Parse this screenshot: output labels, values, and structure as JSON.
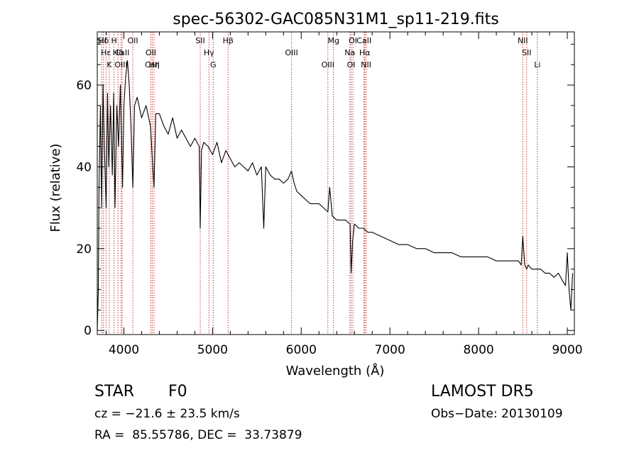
{
  "chart_data": {
    "type": "line",
    "title": "spec-56302-GAC085N31M1_sp11-219.fits",
    "xlabel": "Wavelength (Å)",
    "ylabel": "Flux (relative)",
    "xlim": [
      3700,
      9080
    ],
    "ylim": [
      -1,
      73
    ],
    "xticks": [
      4000,
      5000,
      6000,
      7000,
      8000,
      9000
    ],
    "xtick_labels": [
      "4000",
      "5000",
      "6000",
      "7000",
      "8000",
      "9000"
    ],
    "yticks": [
      0,
      20,
      40,
      60
    ],
    "ytick_labels": [
      "0",
      "20",
      "40",
      "60"
    ],
    "grid": false,
    "line_color": "#000000",
    "marker_color": "#cc3333",
    "series": [
      {
        "x": [
          3700,
          3712,
          3720,
          3735,
          3750,
          3765,
          3780,
          3800,
          3815,
          3830,
          3850,
          3870,
          3885,
          3900,
          3920,
          3940,
          3960,
          3970,
          3985,
          4000,
          4020,
          4040,
          4060,
          4080,
          4101,
          4120,
          4150,
          4200,
          4250,
          4300,
          4340,
          4360,
          4400,
          4450,
          4500,
          4550,
          4600,
          4650,
          4700,
          4750,
          4800,
          4850,
          4861,
          4875,
          4900,
          4950,
          5000,
          5050,
          5100,
          5150,
          5200,
          5250,
          5300,
          5350,
          5400,
          5450,
          5500,
          5550,
          5577,
          5600,
          5650,
          5700,
          5750,
          5800,
          5850,
          5890,
          5920,
          5950,
          6000,
          6050,
          6100,
          6150,
          6200,
          6250,
          6300,
          6320,
          6350,
          6400,
          6450,
          6500,
          6550,
          6563,
          6580,
          6600,
          6650,
          6700,
          6750,
          6800,
          6900,
          7000,
          7100,
          7200,
          7300,
          7400,
          7500,
          7600,
          7700,
          7800,
          7900,
          8000,
          8100,
          8200,
          8300,
          8400,
          8450,
          8480,
          8498,
          8520,
          8542,
          8560,
          8600,
          8662,
          8700,
          8750,
          8800,
          8850,
          8900,
          8950,
          8980,
          9000,
          9020,
          9040,
          9060
        ],
        "y": [
          0,
          10,
          35,
          55,
          30,
          60,
          45,
          30,
          58,
          40,
          55,
          38,
          58,
          30,
          55,
          45,
          60,
          50,
          35,
          55,
          62,
          66,
          60,
          50,
          35,
          55,
          57,
          52,
          55,
          50,
          35,
          53,
          53,
          50,
          48,
          52,
          47,
          49,
          47,
          45,
          47,
          45,
          25,
          44,
          46,
          45,
          43,
          46,
          41,
          44,
          42,
          40,
          41,
          40,
          39,
          41,
          38,
          40,
          25,
          40,
          38,
          37,
          37,
          36,
          37,
          39,
          36,
          34,
          33,
          32,
          31,
          31,
          31,
          30,
          29,
          35,
          28,
          27,
          27,
          27,
          26,
          14,
          22,
          26,
          25,
          25,
          24,
          24,
          23,
          22,
          21,
          21,
          20,
          20,
          19,
          19,
          19,
          18,
          18,
          18,
          18,
          17,
          17,
          17,
          17,
          16,
          23,
          16,
          15,
          16,
          15,
          15,
          15,
          14,
          14,
          13,
          14,
          12,
          11,
          19,
          10,
          5,
          14
        ]
      }
    ],
    "lines": [
      {
        "label": "Hδ",
        "wavelength": 3770
      },
      {
        "label": "Hε",
        "wavelength": 3798
      },
      {
        "label": "K",
        "wavelength": 3835
      },
      {
        "label": "H",
        "wavelength": 3889
      },
      {
        "label": "Hδ",
        "wavelength": 3934
      },
      {
        "label": "OIII",
        "wavelength": 3969
      },
      {
        "label": "OII",
        "wavelength": 4101
      },
      {
        "label": "OII",
        "wavelength": 4304
      },
      {
        "label": "Hη",
        "wavelength": 4340
      },
      {
        "label": "SII",
        "wavelength": 4861
      },
      {
        "label": "Hγ",
        "wavelength": 4959
      },
      {
        "label": "G",
        "wavelength": 5007
      },
      {
        "label": "Hβ",
        "wavelength": 5175
      },
      {
        "label": "OIII",
        "wavelength": 5890
      },
      {
        "label": "OIII",
        "wavelength": 6300
      },
      {
        "label": "Mg",
        "wavelength": 6364
      },
      {
        "label": "Na",
        "wavelength": 6548
      },
      {
        "label": "OI",
        "wavelength": 6563
      },
      {
        "label": "OI",
        "wavelength": 6583
      },
      {
        "label": "Hα",
        "wavelength": 6716
      },
      {
        "label": "NII",
        "wavelength": 6731
      },
      {
        "label": "NII",
        "wavelength": 8498
      },
      {
        "label": "SII",
        "wavelength": 8542
      },
      {
        "label": "Li",
        "wavelength": 8662
      },
      {
        "label": "SII",
        "wavelength": 3750
      },
      {
        "label": "CaII",
        "wavelength": 3980
      },
      {
        "label": "CaII",
        "wavelength": 4320
      },
      {
        "label": "CaII",
        "wavelength": 6708
      }
    ]
  },
  "info": {
    "object": "STAR",
    "subclass": "F0",
    "release": "LAMOST DR5",
    "cz": "cz = −21.6 ± 23.5 km/s",
    "obs_date": "Obs−Date: 20130109",
    "coords": "RA =  85.55786, DEC =  33.73879"
  }
}
